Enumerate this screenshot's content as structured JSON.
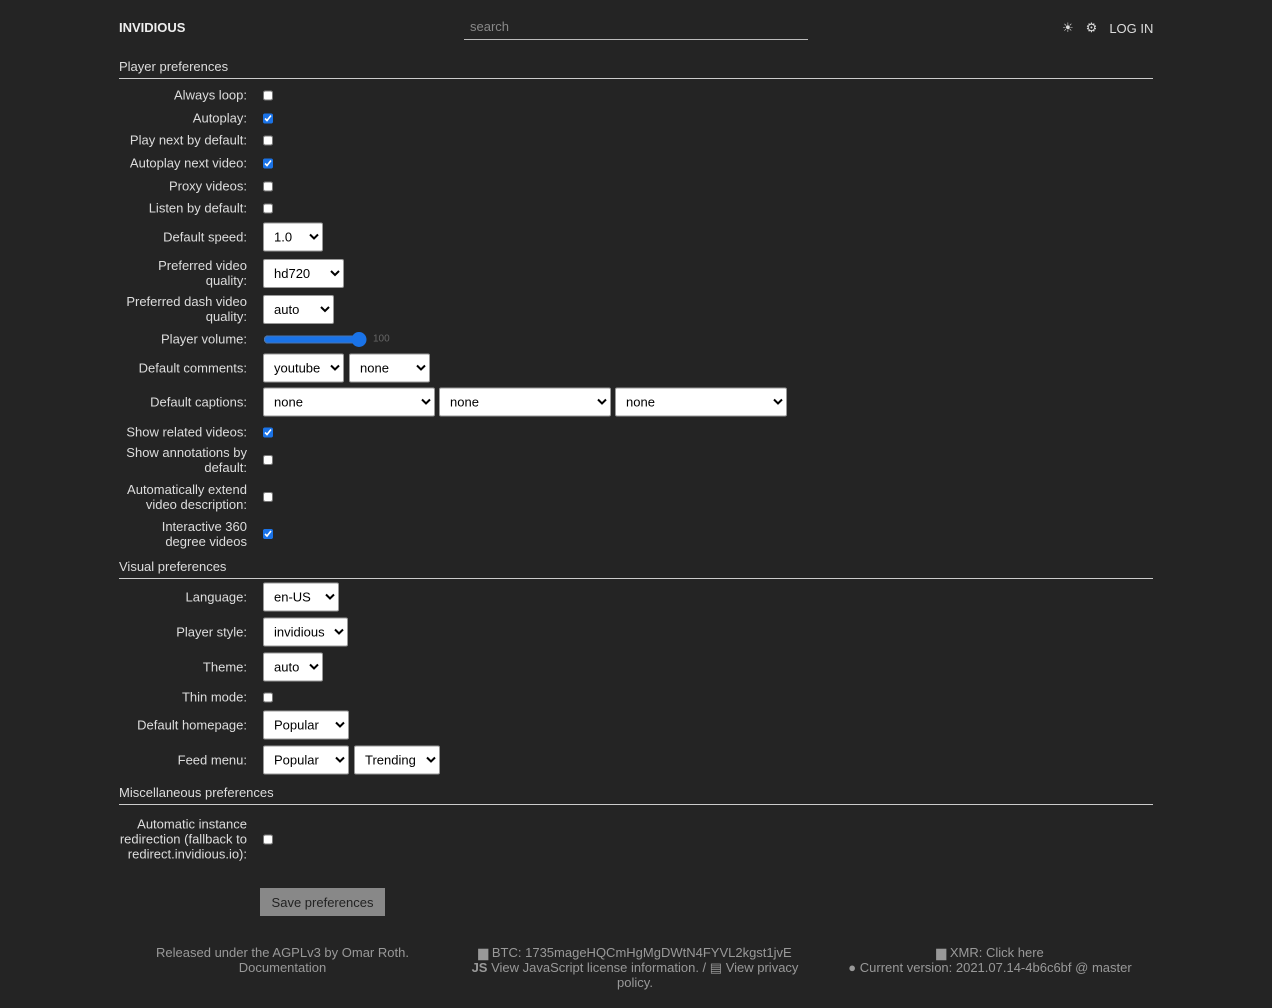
{
  "header": {
    "logo": "INVIDIOUS",
    "search_placeholder": "search",
    "theme_icon": "☀",
    "settings_icon": "⚙",
    "login": "LOG IN"
  },
  "player": {
    "title": "Player preferences",
    "always_loop": {
      "label": "Always loop:",
      "checked": false
    },
    "autoplay": {
      "label": "Autoplay:",
      "checked": true
    },
    "play_next": {
      "label": "Play next by default:",
      "checked": false
    },
    "autoplay_next": {
      "label": "Autoplay next video:",
      "checked": true
    },
    "proxy": {
      "label": "Proxy videos:",
      "checked": false
    },
    "listen": {
      "label": "Listen by default:",
      "checked": false
    },
    "speed": {
      "label": "Default speed:",
      "value": "1.0"
    },
    "quality": {
      "label": "Preferred video quality:",
      "value": "hd720"
    },
    "dash": {
      "label": "Preferred dash video quality:",
      "value": "auto"
    },
    "volume": {
      "label": "Player volume:",
      "value": "100"
    },
    "comments": {
      "label": "Default comments:",
      "values": [
        "youtube",
        "none"
      ]
    },
    "captions": {
      "label": "Default captions:",
      "values": [
        "none",
        "none",
        "none"
      ]
    },
    "related": {
      "label": "Show related videos:",
      "checked": true
    },
    "annotations": {
      "label": "Show annotations by default:",
      "checked": false
    },
    "extend": {
      "label": "Automatically extend video description:",
      "checked": false
    },
    "vr": {
      "label": "Interactive 360 degree videos",
      "checked": true
    }
  },
  "visual": {
    "title": "Visual preferences",
    "language": {
      "label": "Language:",
      "value": "en-US"
    },
    "style": {
      "label": "Player style:",
      "value": "invidious"
    },
    "theme": {
      "label": "Theme:",
      "value": "auto"
    },
    "thin": {
      "label": "Thin mode:",
      "checked": false
    },
    "homepage": {
      "label": "Default homepage:",
      "value": "Popular"
    },
    "feed": {
      "label": "Feed menu:",
      "values": [
        "Popular",
        "Trending"
      ]
    }
  },
  "misc": {
    "title": "Miscellaneous preferences",
    "redirect": {
      "label": "Automatic instance redirection (fallback to redirect.invidious.io):",
      "checked": false
    }
  },
  "save": "Save preferences",
  "footer": {
    "license": "Released under the AGPLv3 by Omar Roth.",
    "docs": "Documentation",
    "btc": "BTC: 1735mageHQCmHgMgDWtN4FYVL2kgst1jvE",
    "js": "View JavaScript license information.",
    "sep": " / ",
    "privacy": "View privacy policy.",
    "xmr": "XMR: Click here",
    "version": "Current version: 2021.07.14-4b6c6bf @ master"
  }
}
